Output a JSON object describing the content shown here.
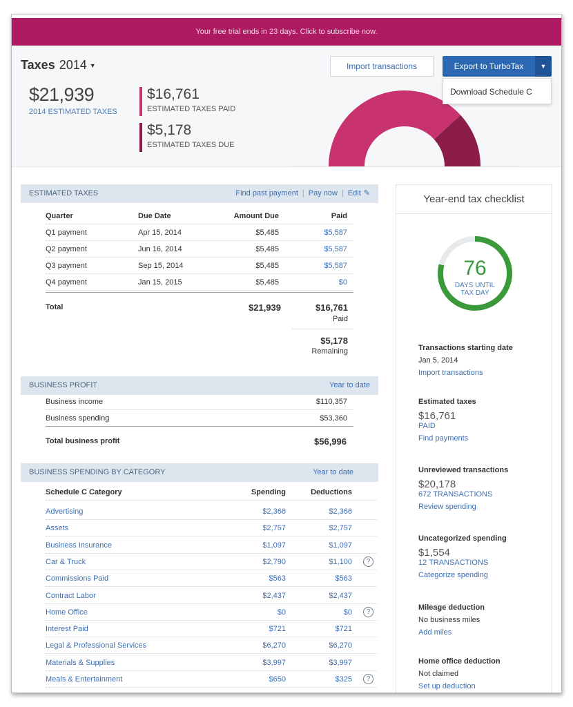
{
  "banner": {
    "text": "Your free trial ends in 23 days. Click to subscribe now."
  },
  "header": {
    "title": "Taxes",
    "year": "2014",
    "estimated_total": "$21,939",
    "estimated_total_label": "2014 ESTIMATED TAXES",
    "paid_value": "$16,761",
    "paid_label": "ESTIMATED TAXES PAID",
    "due_value": "$5,178",
    "due_label": "ESTIMATED TAXES DUE",
    "import_button": "Import transactions",
    "export_button": "Export to TurboTax",
    "dropdown_item": "Download Schedule C",
    "colors": {
      "paid": "#c7326f",
      "due": "#8b1d48",
      "banner": "#ad1a62",
      "accent": "#2c67b1"
    },
    "donut": {
      "paid": 16761,
      "due": 5178
    }
  },
  "estimated_taxes": {
    "title": "ESTIMATED TAXES",
    "links": {
      "find": "Find past payment",
      "pay": "Pay now",
      "edit": "Edit"
    },
    "columns": {
      "quarter": "Quarter",
      "due_date": "Due Date",
      "amount_due": "Amount Due",
      "paid": "Paid"
    },
    "rows": [
      {
        "quarter": "Q1 payment",
        "due_date": "Apr 15, 2014",
        "amount": "$5,485",
        "paid": "$5,587"
      },
      {
        "quarter": "Q2 payment",
        "due_date": "Jun 16, 2014",
        "amount": "$5,485",
        "paid": "$5,587"
      },
      {
        "quarter": "Q3 payment",
        "due_date": "Sep 15, 2014",
        "amount": "$5,485",
        "paid": "$5,587"
      },
      {
        "quarter": "Q4 payment",
        "due_date": "Jan 15, 2015",
        "amount": "$5,485",
        "paid": "$0"
      }
    ],
    "total_label": "Total",
    "total_amount": "$21,939",
    "total_paid": "$16,761",
    "total_paid_label": "Paid",
    "remaining": "$5,178",
    "remaining_label": "Remaining"
  },
  "business_profit": {
    "title": "BUSINESS PROFIT",
    "period": "Year to date",
    "income_label": "Business income",
    "income": "$110,357",
    "spending_label": "Business spending",
    "spending": "$53,360",
    "total_label": "Total business profit",
    "total": "$56,996"
  },
  "spending_by_category": {
    "title": "BUSINESS SPENDING BY CATEGORY",
    "period": "Year to date",
    "columns": {
      "category": "Schedule C Category",
      "spending": "Spending",
      "deductions": "Deductions"
    },
    "rows": [
      {
        "category": "Advertising",
        "spending": "$2,366",
        "deductions": "$2,366",
        "help": false
      },
      {
        "category": "Assets",
        "spending": "$2,757",
        "deductions": "$2,757",
        "help": false
      },
      {
        "category": "Business Insurance",
        "spending": "$1,097",
        "deductions": "$1,097",
        "help": false
      },
      {
        "category": "Car & Truck",
        "spending": "$2,790",
        "deductions": "$1,100",
        "help": true
      },
      {
        "category": "Commissions Paid",
        "spending": "$563",
        "deductions": "$563",
        "help": false
      },
      {
        "category": "Contract Labor",
        "spending": "$2,437",
        "deductions": "$2,437",
        "help": false
      },
      {
        "category": "Home Office",
        "spending": "$0",
        "deductions": "$0",
        "help": true
      },
      {
        "category": "Interest Paid",
        "spending": "$721",
        "deductions": "$721",
        "help": false
      },
      {
        "category": "Legal & Professional Services",
        "spending": "$6,270",
        "deductions": "$6,270",
        "help": false
      },
      {
        "category": "Materials & Supplies",
        "spending": "$3,997",
        "deductions": "$3,997",
        "help": false
      },
      {
        "category": "Meals & Entertainment",
        "spending": "$650",
        "deductions": "$325",
        "help": true
      }
    ]
  },
  "checklist": {
    "title": "Year-end tax checklist",
    "days": "76",
    "days_label_1": "DAYS UNTIL",
    "days_label_2": "TAX DAY",
    "days_progress": 0.79,
    "ring_color": "#3a9a3a",
    "items": {
      "transactions": {
        "heading": "Transactions starting date",
        "text": "Jan 5, 2014",
        "link": "Import transactions"
      },
      "estimated": {
        "heading": "Estimated taxes",
        "value": "$16,761",
        "sub": "PAID",
        "link": "Find payments"
      },
      "unreviewed": {
        "heading": "Unreviewed transactions",
        "value": "$20,178",
        "sub": "672 TRANSACTIONS",
        "link": "Review spending"
      },
      "uncategorized": {
        "heading": "Uncategorized spending",
        "value": "$1,554",
        "sub": "12 TRANSACTIONS",
        "link": "Categorize spending"
      },
      "mileage": {
        "heading": "Mileage deduction",
        "text": "No business miles",
        "link": "Add miles"
      },
      "home_office": {
        "heading": "Home office deduction",
        "text": "Not claimed",
        "link": "Set up deduction"
      }
    }
  }
}
